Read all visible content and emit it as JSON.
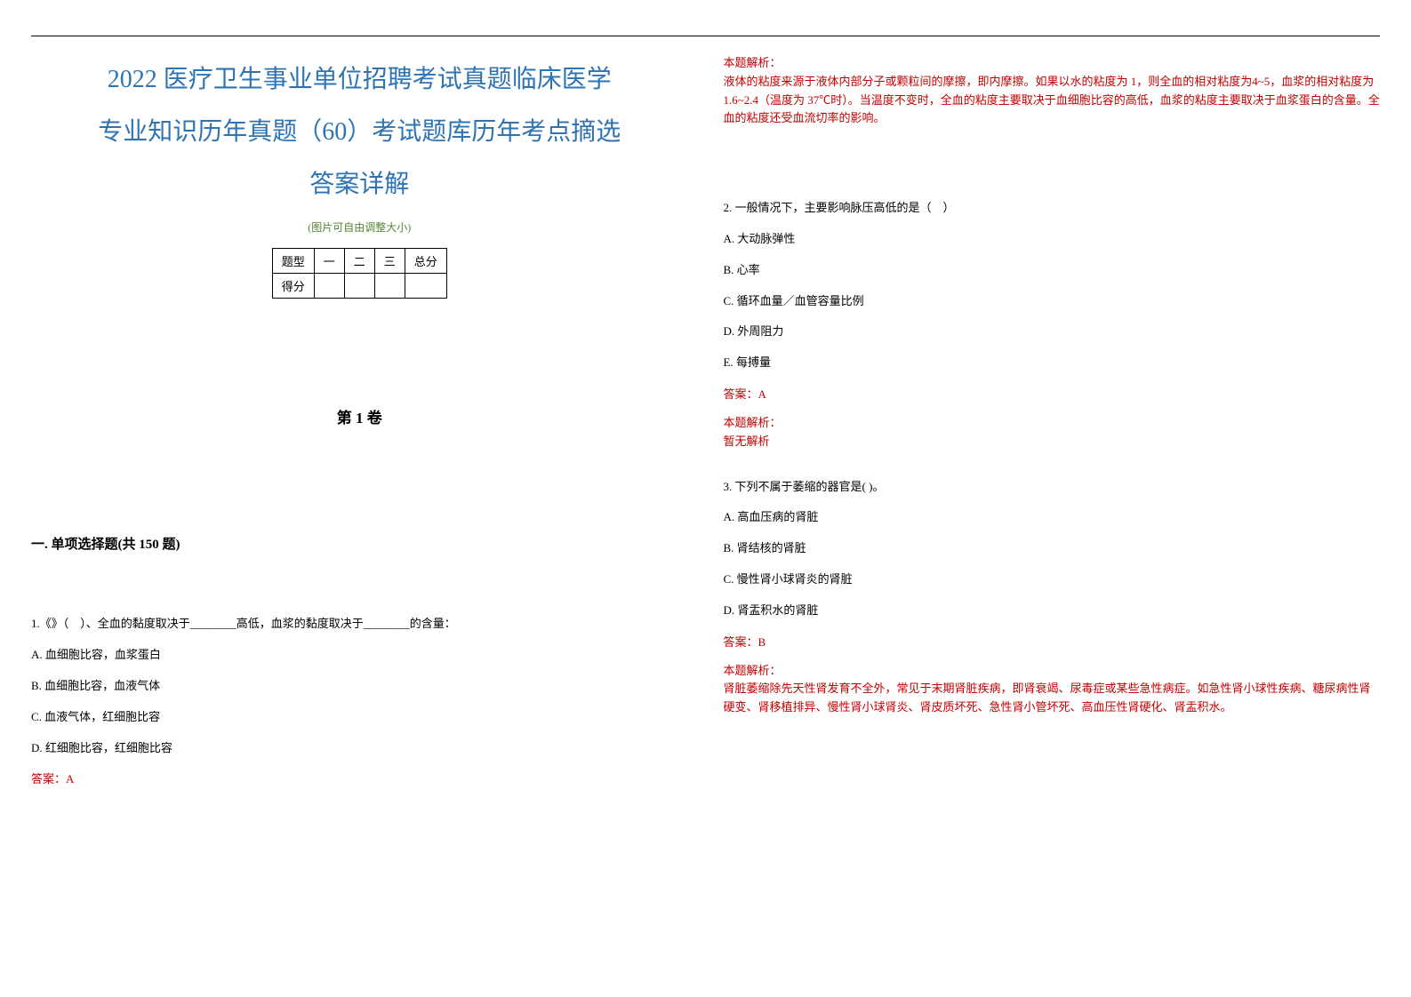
{
  "title_line1": "2022 医疗卫生事业单位招聘考试真题临床医学",
  "title_line2": "专业知识历年真题（60）考试题库历年考点摘选",
  "title_line3": "答案详解",
  "sub_note": "(图片可自由调整大小)",
  "table": {
    "header": [
      "题型",
      "一",
      "二",
      "三",
      "总分"
    ],
    "row1_label": "得分"
  },
  "volume": "第 1 卷",
  "section": "一. 单项选择题(共 150 题)",
  "q1": {
    "text": "1.《》（　）、全血的黏度取决于________高低，血浆的黏度取决于________的含量：",
    "optA": "A. 血细胞比容，血浆蛋白",
    "optB": "B. 血细胞比容，血液气体",
    "optC": "C. 血液气体，红细胞比容",
    "optD": "D. 红细胞比容，红细胞比容",
    "answer": "答案：A",
    "analysis_label": "本题解析：",
    "analysis": "液体的粘度来源于液体内部分子或颗粒间的摩擦，即内摩擦。如果以水的粘度为 1，则全血的相对粘度为4~5，血浆的相对粘度为 1.6~2.4（温度为 37℃时）。当温度不变时，全血的粘度主要取决于血细胞比容的高低，血浆的粘度主要取决于血浆蛋白的含量。全血的粘度还受血流切率的影响。"
  },
  "q2": {
    "text": "2. 一般情况下，主要影响脉压高低的是（　）",
    "optA": "A. 大动脉弹性",
    "optB": "B. 心率",
    "optC": "C. 循环血量／血管容量比例",
    "optD": "D. 外周阻力",
    "optE": "E. 每搏量",
    "answer": "答案：A",
    "analysis_label": "本题解析：",
    "analysis": "暂无解析"
  },
  "q3": {
    "text": "3. 下列不属于萎缩的器官是( )。",
    "optA": "A. 高血压病的肾脏",
    "optB": "B. 肾结核的肾脏",
    "optC": "C. 慢性肾小球肾炎的肾脏",
    "optD": "D. 肾盂积水的肾脏",
    "answer": "答案：B",
    "analysis_label": "本题解析：",
    "analysis": "肾脏萎缩除先天性肾发育不全外，常见于末期肾脏疾病，即肾衰竭、尿毒症或某些急性病症。如急性肾小球性疾病、糖尿病性肾硬变、肾移植排异、慢性肾小球肾炎、肾皮质坏死、急性肾小管坏死、高血压性肾硬化、肾盂积水。"
  }
}
